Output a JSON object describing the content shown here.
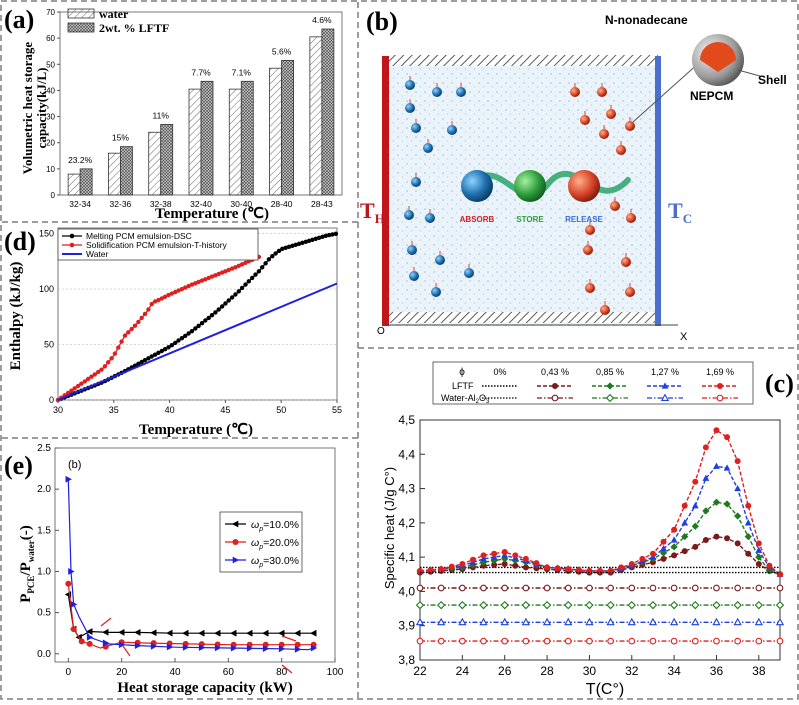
{
  "frame_color": "#7d7d7d",
  "panel_a": {
    "label": "(a)",
    "ylabel_line1": "Volumetric heat storage",
    "ylabel_line2": "capacity(kJ/L)",
    "xlabel": "Temperature  (℃)",
    "legend": [
      "water",
      "2wt. % LFTF"
    ],
    "chart_data": {
      "type": "bar",
      "categories": [
        "32-34",
        "32-36",
        "32-38",
        "32-40",
        "30-40",
        "28-40",
        "28-43"
      ],
      "series": [
        {
          "name": "water",
          "values": [
            8,
            16,
            24,
            40.5,
            40.5,
            48.5,
            60.5
          ]
        },
        {
          "name": "2wt. % LFTF",
          "values": [
            10,
            18.5,
            27,
            43.5,
            43.5,
            51.5,
            63.5
          ]
        }
      ],
      "data_labels": [
        "23.2%",
        "15%",
        "11%",
        "7.7%",
        "7.1%",
        "5.6%",
        "4.6%"
      ],
      "yticks": [
        0,
        10,
        20,
        30,
        40,
        50,
        60,
        70
      ],
      "ylim": [
        0,
        70
      ]
    }
  },
  "panel_b": {
    "label": "(b)",
    "th_main": "T",
    "th_sub": "H",
    "tc_main": "T",
    "tc_sub": "C",
    "origin": "O",
    "axis_x": "X",
    "absorb": "ABSORB",
    "store": "STORE",
    "release": "RELEASE",
    "n_nonadecane": "N-nonadecane",
    "shell": "Shell",
    "nepcm": "NEPCM",
    "colors": {
      "hot": "#c0151b",
      "cold": "#4a6fd0",
      "blue_particle": "#2a6f95",
      "red_particle": "#d8452a",
      "green": "#2e9e3e"
    }
  },
  "panel_c": {
    "label": "(c)",
    "ylabel": "Specific heat  (J/g C°)",
    "xlabel": "T(C°)",
    "legend_phi": "ϕ",
    "legend_cols": [
      "0%",
      "0,43 %",
      "0,85 %",
      "1,27 %",
      "1,69 %"
    ],
    "legend_row1": "LFTF",
    "legend_row2_main": "Water-Al",
    "legend_row2_sub1": "2",
    "legend_row2_mid": "O",
    "legend_row2_sub2": "3",
    "colors": [
      "#000000",
      "#7a1a1a",
      "#1f7a1f",
      "#1f3fe0",
      "#e01f1f"
    ],
    "chart_data": {
      "type": "line",
      "xticks": [
        22,
        24,
        26,
        28,
        30,
        32,
        34,
        36,
        38
      ],
      "yticks": [
        "3,8",
        "3,9",
        "4,0",
        "4,1",
        "4,2",
        "4,3",
        "4,4",
        "4,5"
      ],
      "yvals": [
        3.8,
        3.9,
        4.0,
        4.1,
        4.2,
        4.3,
        4.4,
        4.5
      ],
      "xlim": [
        22,
        39
      ],
      "ylim": [
        3.8,
        4.5
      ],
      "series": [
        {
          "name": "LFTF 0%",
          "x": [
            22,
            39
          ],
          "y": [
            4.07,
            4.07
          ]
        },
        {
          "name": "LFTF 0,43 %",
          "x": [
            22,
            23,
            24,
            25,
            26,
            27,
            28,
            29,
            30,
            31,
            32,
            33,
            34,
            35,
            35.5,
            36,
            36.5,
            37,
            37.5,
            38,
            38.5,
            39
          ],
          "y": [
            4.055,
            4.06,
            4.065,
            4.075,
            4.08,
            4.07,
            4.065,
            4.06,
            4.055,
            4.055,
            4.07,
            4.085,
            4.105,
            4.13,
            4.15,
            4.16,
            4.155,
            4.14,
            4.11,
            4.08,
            4.06,
            4.05
          ]
        },
        {
          "name": "LFTF 0,85 %",
          "x": [
            22,
            23,
            24,
            25,
            26,
            27,
            28,
            29,
            30,
            31,
            32,
            33,
            34,
            35,
            35.5,
            36,
            36.5,
            37,
            37.5,
            38,
            38.5,
            39
          ],
          "y": [
            4.06,
            4.065,
            4.07,
            4.085,
            4.095,
            4.085,
            4.07,
            4.065,
            4.06,
            4.06,
            4.075,
            4.095,
            4.13,
            4.19,
            4.235,
            4.26,
            4.255,
            4.22,
            4.16,
            4.1,
            4.06,
            4.05
          ]
        },
        {
          "name": "LFTF 1,27 %",
          "x": [
            22,
            23,
            24,
            25,
            26,
            27,
            28,
            29,
            30,
            31,
            32,
            33,
            34,
            35,
            35.5,
            36,
            36.5,
            37,
            37.5,
            38,
            38.5,
            39
          ],
          "y": [
            4.06,
            4.065,
            4.075,
            4.095,
            4.105,
            4.09,
            4.07,
            4.065,
            4.06,
            4.06,
            4.075,
            4.1,
            4.15,
            4.25,
            4.33,
            4.365,
            4.36,
            4.3,
            4.2,
            4.12,
            4.07,
            4.05
          ]
        },
        {
          "name": "LFTF 1,69 %",
          "x": [
            22,
            23,
            24,
            25,
            26,
            27,
            28,
            29,
            30,
            31,
            32,
            33,
            34,
            35,
            35.5,
            36,
            36.5,
            37,
            37.5,
            38,
            38.5,
            39
          ],
          "y": [
            4.06,
            4.065,
            4.08,
            4.105,
            4.115,
            4.095,
            4.07,
            4.065,
            4.06,
            4.06,
            4.08,
            4.11,
            4.18,
            4.32,
            4.42,
            4.47,
            4.45,
            4.38,
            4.25,
            4.14,
            4.075,
            4.05
          ]
        },
        {
          "name": "Water-Al2O3 0%",
          "x": [
            22,
            39
          ],
          "y": [
            4.055,
            4.055
          ]
        },
        {
          "name": "Water-Al2O3 0,43 %",
          "x": [
            22,
            39
          ],
          "y": [
            4.01,
            4.01
          ]
        },
        {
          "name": "Water-Al2O3 0,85 %",
          "x": [
            22,
            39
          ],
          "y": [
            3.96,
            3.96
          ]
        },
        {
          "name": "Water-Al2O3 1,27 %",
          "x": [
            22,
            39
          ],
          "y": [
            3.91,
            3.91
          ]
        },
        {
          "name": "Water-Al2O3 1,69 %",
          "x": [
            22,
            39
          ],
          "y": [
            3.855,
            3.855
          ]
        }
      ]
    }
  },
  "panel_d": {
    "label": "(d)",
    "ylabel": "Enthalpy  (kJ/kg)",
    "xlabel": "Temperature  (℃)",
    "legend": [
      "Melting PCM emulsion-DSC",
      "Solidification PCM emulsion-T-history",
      "Water"
    ],
    "colors": [
      "#000000",
      "#e01f1f",
      "#1f1fe0"
    ],
    "chart_data": {
      "type": "line",
      "xticks": [
        30,
        35,
        40,
        45,
        50,
        55
      ],
      "yticks": [
        0,
        50,
        100,
        150
      ],
      "xlim": [
        30,
        55
      ],
      "ylim": [
        0,
        155
      ],
      "series": [
        {
          "name": "Melting PCM emulsion-DSC",
          "x": [
            30,
            32,
            34,
            36,
            38,
            40,
            42,
            44,
            46,
            47,
            48,
            49,
            50,
            52,
            54,
            55
          ],
          "y": [
            0,
            8,
            16,
            26,
            37,
            48,
            62,
            78,
            96,
            106,
            116,
            128,
            136,
            142,
            148,
            150
          ]
        },
        {
          "name": "Solidification PCM emulsion-T-history",
          "x": [
            30,
            32,
            34,
            35,
            36,
            37,
            38,
            38.5,
            39,
            40,
            42,
            44,
            46,
            48
          ],
          "y": [
            0,
            14,
            28,
            40,
            58,
            68,
            80,
            88,
            90,
            95,
            104,
            112,
            120,
            129
          ]
        },
        {
          "name": "Water",
          "x": [
            30,
            55
          ],
          "y": [
            0,
            105
          ]
        }
      ]
    }
  },
  "panel_e": {
    "label": "(e)",
    "inner_label": "(b)",
    "ylabel_main": "P",
    "ylabel_sub1": "PCE",
    "ylabel_mid": "/P",
    "ylabel_sub2": "water",
    "ylabel_tail": "(-)",
    "xlabel": "Heat storage capacity (kW)",
    "legend_omega": "ω",
    "legend_sub": "p",
    "legend_vals": [
      "=10.0%",
      "=20.0%",
      "=30.0%"
    ],
    "colors": [
      "#000000",
      "#e01f1f",
      "#1f1fe0"
    ],
    "chart_data": {
      "type": "line",
      "xticks": [
        0,
        20,
        40,
        60,
        80,
        100
      ],
      "yticks": [
        "0.0",
        "0.5",
        "1.0",
        "1.5",
        "2.0",
        "2.5"
      ],
      "yvals": [
        0,
        0.5,
        1.0,
        1.5,
        2.0,
        2.5
      ],
      "xlim": [
        -5,
        100
      ],
      "ylim": [
        -0.1,
        2.5
      ],
      "series": [
        {
          "name": "ωp=10.0%",
          "x": [
            0,
            2,
            4,
            8,
            15,
            25,
            40,
            60,
            80,
            92
          ],
          "y": [
            0.72,
            0.3,
            0.2,
            0.27,
            0.26,
            0.26,
            0.25,
            0.25,
            0.25,
            0.25
          ]
        },
        {
          "name": "ωp=20.0%",
          "x": [
            0,
            2,
            5,
            8,
            12,
            20,
            30,
            45,
            60,
            80,
            92
          ],
          "y": [
            0.85,
            0.3,
            0.15,
            0.12,
            0.07,
            0.14,
            0.13,
            0.12,
            0.11,
            0.11,
            0.11
          ]
        },
        {
          "name": "ωp=30.0%",
          "x": [
            0,
            1,
            2,
            4,
            8,
            15,
            25,
            40,
            60,
            80,
            90,
            92
          ],
          "y": [
            2.12,
            1.0,
            0.6,
            0.45,
            0.2,
            0.12,
            0.1,
            0.08,
            0.07,
            0.06,
            0.05,
            0.07
          ]
        }
      ]
    }
  }
}
